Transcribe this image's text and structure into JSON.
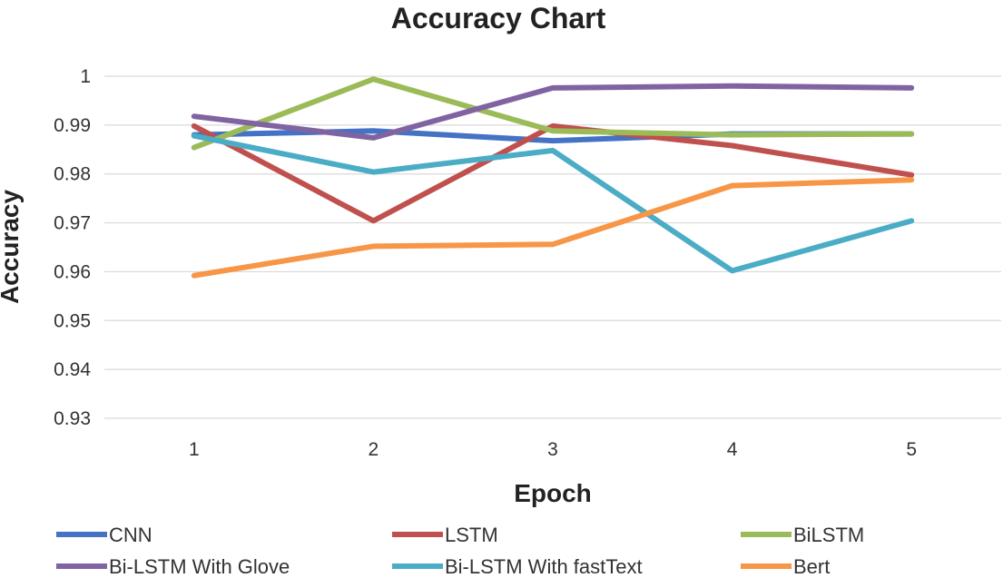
{
  "chart_data": {
    "type": "line",
    "title": "Accuracy Chart",
    "xlabel": "Epoch",
    "ylabel": "Accuracy",
    "categories": [
      "1",
      "2",
      "3",
      "4",
      "5"
    ],
    "ylim": [
      0.93,
      1.0
    ],
    "y_ticks": [
      "0.93",
      "0.94",
      "0.95",
      "0.96",
      "0.97",
      "0.98",
      "0.99",
      "1"
    ],
    "grid": true,
    "legend_position": "bottom",
    "series": [
      {
        "name": "CNN",
        "color": "#4472C4",
        "values": [
          0.988,
          0.9888,
          0.9868,
          0.9882,
          0.9882
        ]
      },
      {
        "name": "LSTM",
        "color": "#C0504D",
        "values": [
          0.9898,
          0.9704,
          0.9898,
          0.9858,
          0.9798
        ]
      },
      {
        "name": "BiLSTM",
        "color": "#9BBB59",
        "values": [
          0.9854,
          0.9994,
          0.9888,
          0.988,
          0.9882
        ]
      },
      {
        "name": "Bi-LSTM With Glove",
        "color": "#8064A2",
        "values": [
          0.9918,
          0.9874,
          0.9976,
          0.998,
          0.9976
        ]
      },
      {
        "name": "Bi-LSTM With fastText",
        "color": "#4BACC6",
        "values": [
          0.9878,
          0.9804,
          0.9848,
          0.9602,
          0.9704
        ]
      },
      {
        "name": "Bert",
        "color": "#F79646",
        "values": [
          0.9592,
          0.9652,
          0.9656,
          0.9776,
          0.9788
        ]
      }
    ]
  }
}
